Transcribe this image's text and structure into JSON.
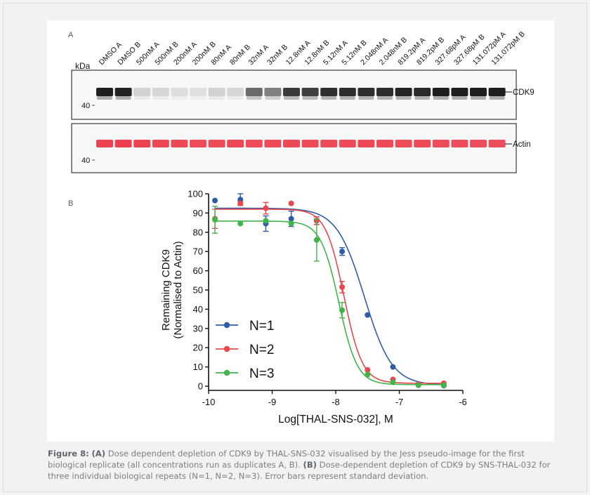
{
  "panel_a": {
    "label": "A",
    "kda": "kDa",
    "lanes": [
      "DMSO A",
      "DMSO B",
      "500nM A",
      "500nM B",
      "200nM A",
      "200nM B",
      "80nM A",
      "80nM B",
      "32nM A",
      "32nM B",
      "12.8nM A",
      "12.8nM B",
      "5.12nM A",
      "5.12nM B",
      "2.048nM A",
      "2.048nM B",
      "819.2pM A",
      "819.2pM B",
      "327.68pM A",
      "327.68pM B",
      "131.072pM A",
      "131.072pM B"
    ],
    "cdk9_label": "CDK9",
    "actin_label": "Actin",
    "marker_top": "40",
    "marker_bottom": "40",
    "cdk9_intensity": [
      0.95,
      0.93,
      0.12,
      0.1,
      0.06,
      0.05,
      0.12,
      0.1,
      0.6,
      0.5,
      0.82,
      0.8,
      0.88,
      0.88,
      0.88,
      0.88,
      0.92,
      0.9,
      0.95,
      0.95,
      0.95,
      0.95
    ],
    "actin_intensity": [
      0.9,
      0.92,
      0.9,
      0.88,
      0.87,
      0.85,
      0.86,
      0.88,
      0.85,
      0.86,
      0.87,
      0.86,
      0.86,
      0.86,
      0.87,
      0.86,
      0.85,
      0.86,
      0.85,
      0.84,
      0.84,
      0.84
    ]
  },
  "panel_b_label": "B",
  "chart_data": {
    "type": "scatter",
    "xlabel": "Log[THAL-SNS-032], M",
    "ylabel_line1": "Remaining CDK9",
    "ylabel_line2": "(Normalised to Actin)",
    "xlim": [
      -10,
      -6
    ],
    "ylim": [
      0,
      100
    ],
    "xticks": [
      "-10",
      "-9",
      "-8",
      "-7",
      "-6"
    ],
    "yticks": [
      "0",
      "10",
      "20",
      "30",
      "40",
      "50",
      "60",
      "70",
      "80",
      "90",
      "100"
    ],
    "legend_position": "lower-left",
    "series": [
      {
        "name": "N=1",
        "color": "#2f5ca8",
        "points": [
          {
            "x": -9.9,
            "y": 96.5,
            "err": 0
          },
          {
            "x": -9.5,
            "y": 97,
            "err": 3
          },
          {
            "x": -9.1,
            "y": 84.5,
            "err": 4
          },
          {
            "x": -8.7,
            "y": 87,
            "err": 4
          },
          {
            "x": -8.3,
            "y": 86,
            "err": 2
          },
          {
            "x": -7.9,
            "y": 70,
            "err": 2
          },
          {
            "x": -7.5,
            "y": 37,
            "err": 0
          },
          {
            "x": -7.1,
            "y": 10,
            "err": 0
          },
          {
            "x": -6.7,
            "y": 0.5,
            "err": 0
          },
          {
            "x": -6.3,
            "y": 0.3,
            "err": 0
          }
        ],
        "fit": {
          "top": 92.5,
          "bottom": 0.5,
          "logec50": -7.55,
          "hill": 2.0
        }
      },
      {
        "name": "N=2",
        "color": "#e8474c",
        "points": [
          {
            "x": -9.9,
            "y": 87,
            "err": 5
          },
          {
            "x": -9.5,
            "y": 95,
            "err": 1
          },
          {
            "x": -9.1,
            "y": 92.5,
            "err": 3
          },
          {
            "x": -8.7,
            "y": 95,
            "err": 0
          },
          {
            "x": -8.3,
            "y": 86,
            "err": 2
          },
          {
            "x": -7.9,
            "y": 51.5,
            "err": 3
          },
          {
            "x": -7.5,
            "y": 8.5,
            "err": 0
          },
          {
            "x": -7.1,
            "y": 3.5,
            "err": 0
          },
          {
            "x": -6.7,
            "y": 1,
            "err": 0
          },
          {
            "x": -6.3,
            "y": 1.5,
            "err": 0
          }
        ],
        "fit": {
          "top": 92,
          "bottom": 1.5,
          "logec50": -7.87,
          "hill": 3.0
        }
      },
      {
        "name": "N=3",
        "color": "#3fb54a",
        "points": [
          {
            "x": -9.9,
            "y": 86.5,
            "err": 7
          },
          {
            "x": -9.5,
            "y": 84.5,
            "err": 0
          },
          {
            "x": -9.1,
            "y": 86,
            "err": 0
          },
          {
            "x": -8.7,
            "y": 84.5,
            "err": 0
          },
          {
            "x": -8.3,
            "y": 76,
            "err": 11
          },
          {
            "x": -7.9,
            "y": 39.5,
            "err": 4
          },
          {
            "x": -7.5,
            "y": 6,
            "err": 0
          },
          {
            "x": -7.1,
            "y": 2,
            "err": 0
          },
          {
            "x": -6.7,
            "y": 0.5,
            "err": 0
          },
          {
            "x": -6.3,
            "y": 0.5,
            "err": 0
          }
        ],
        "fit": {
          "top": 85.8,
          "bottom": 0.8,
          "logec50": -7.95,
          "hill": 3.0
        }
      }
    ]
  },
  "caption": {
    "fig": "Figure 8:",
    "a_tag": "(A)",
    "a_text": " Dose dependent depletion of CDK9 by THAL-SNS-032 visualised by the Jess pseudo-image for the first biological replicate (all concentrations run as duplicates A, B). ",
    "b_tag": "(B)",
    "b_text": " Dose-dependent depletion of CDK9 by SNS-THAL-032 for three individual biological repeats (N=1, N=2, N=3). Error bars represent standard deviation."
  }
}
